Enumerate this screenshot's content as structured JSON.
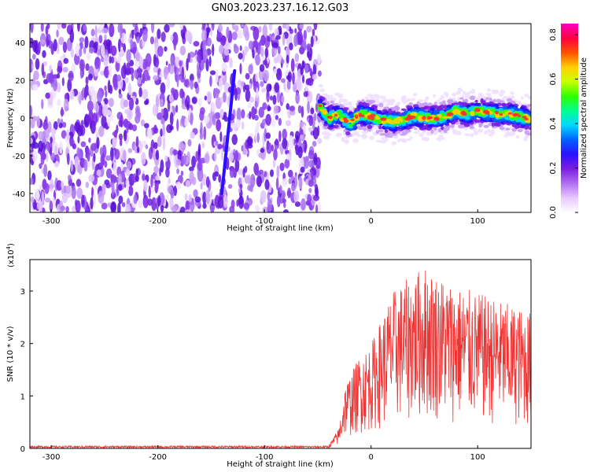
{
  "chart_data": [
    {
      "type": "heatmap",
      "title": "GN03.2023.237.16.12.G03",
      "xlabel": "Height of straight line (km)",
      "ylabel": "Frequency (Hz)",
      "xlim": [
        -320,
        150
      ],
      "ylim": [
        -50,
        50
      ],
      "xticks": [
        "-300",
        "-200",
        "-100",
        "0",
        "100"
      ],
      "yticks": [
        "-40",
        "-20",
        "0",
        "20",
        "40"
      ],
      "colorbar": {
        "label": "Normalized spectral amplitude",
        "range": [
          0,
          0.85
        ],
        "ticks": [
          "0.0",
          "0.2",
          "0.4",
          "0.6",
          "0.8"
        ],
        "colors": [
          "#ffffff",
          "#e8c8ff",
          "#b070f0",
          "#7a1fe0",
          "#2a10ff",
          "#0060ff",
          "#00d8ff",
          "#00ff90",
          "#30ff00",
          "#c8ff00",
          "#ffd000",
          "#ff5000",
          "#ff0040",
          "#ff00c0"
        ]
      },
      "regions": {
        "noise_x": [
          -320,
          -48
        ],
        "signal_x": [
          -48,
          150
        ],
        "signal_center_hz": [
          {
            "x": -48,
            "y": 6
          },
          {
            "x": -40,
            "y": 0
          },
          {
            "x": -30,
            "y": 2
          },
          {
            "x": -20,
            "y": -3
          },
          {
            "x": -10,
            "y": 2
          },
          {
            "x": 0,
            "y": 1
          },
          {
            "x": 10,
            "y": -1
          },
          {
            "x": 20,
            "y": -2
          },
          {
            "x": 30,
            "y": -1
          },
          {
            "x": 40,
            "y": 1
          },
          {
            "x": 50,
            "y": 0
          },
          {
            "x": 60,
            "y": 0
          },
          {
            "x": 70,
            "y": 1
          },
          {
            "x": 80,
            "y": 4
          },
          {
            "x": 90,
            "y": 2
          },
          {
            "x": 100,
            "y": 4
          },
          {
            "x": 110,
            "y": 3
          },
          {
            "x": 120,
            "y": 2
          },
          {
            "x": 130,
            "y": 2
          },
          {
            "x": 140,
            "y": 1
          },
          {
            "x": 150,
            "y": -1
          }
        ],
        "streak": {
          "x0": -140,
          "y0": -40,
          "x1": -128,
          "y1": 25
        }
      }
    },
    {
      "type": "line",
      "xlabel": "Height of straight line (km)",
      "ylabel": "SNR (10 * v/v)",
      "scale_label": "(x10",
      "scale_exp": "4",
      "scale_close": ")",
      "xlim": [
        -320,
        150
      ],
      "ylim": [
        0,
        3.6
      ],
      "xticks": [
        "-300",
        "-200",
        "-100",
        "0",
        "100"
      ],
      "yticks": [
        "0",
        "1",
        "2",
        "3"
      ],
      "color": "#ee3333",
      "envelope": [
        {
          "x": -320,
          "y": 0.05
        },
        {
          "x": -40,
          "y": 0.05
        },
        {
          "x": -30,
          "y": 0.4
        },
        {
          "x": -25,
          "y": 1.2
        },
        {
          "x": -10,
          "y": 1.8
        },
        {
          "x": 0,
          "y": 2.0
        },
        {
          "x": 20,
          "y": 3.0
        },
        {
          "x": 50,
          "y": 3.5
        },
        {
          "x": 80,
          "y": 3.1
        },
        {
          "x": 110,
          "y": 2.9
        },
        {
          "x": 150,
          "y": 2.6
        }
      ]
    }
  ]
}
